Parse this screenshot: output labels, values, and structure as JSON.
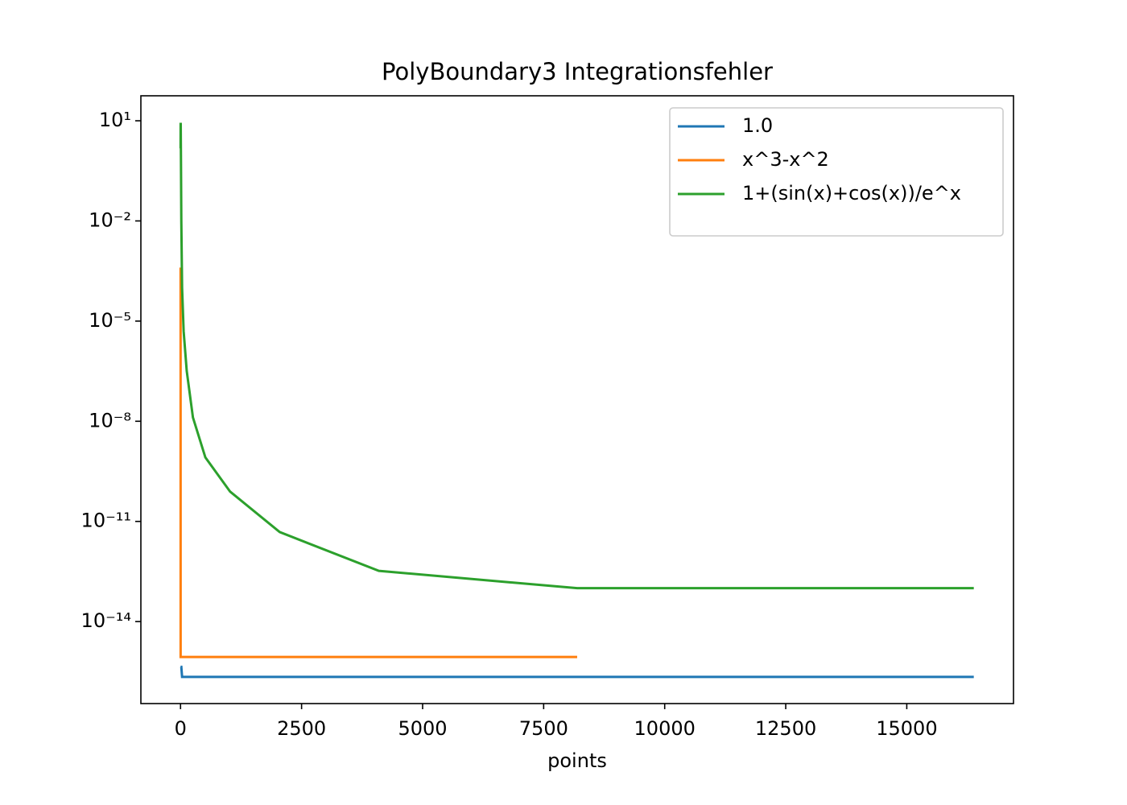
{
  "chart_data": {
    "type": "line",
    "title": "PolyBoundary3 Integrationsfehler",
    "xlabel": "points",
    "x": [
      1,
      2,
      4,
      8,
      16,
      32,
      64,
      128,
      256,
      512,
      1024,
      2048,
      4096,
      8192,
      16384
    ],
    "series": [
      {
        "name": "1.0",
        "color": "#1f77b4",
        "values": [
          4.4e-16,
          4.4e-16,
          4.4e-16,
          4.4e-16,
          4.4e-16,
          2.2e-16,
          2.2e-16,
          2.2e-16,
          2.2e-16,
          2.2e-16,
          2.2e-16,
          2.2e-16,
          2.2e-16,
          2.2e-16,
          2.2e-16
        ]
      },
      {
        "name": "x^3-x^2",
        "color": "#ff7f0e",
        "values": [
          0.0004,
          8.7e-16,
          8.7e-16,
          8.7e-16,
          8.7e-16,
          8.7e-16,
          8.7e-16,
          8.7e-16,
          8.7e-16,
          8.7e-16,
          8.7e-16,
          8.7e-16,
          8.7e-16,
          8.7e-16,
          null
        ]
      },
      {
        "name": "1+(sin(x)+cos(x))/e^x",
        "color": "#2ca02c",
        "values": [
          1.5,
          8,
          8,
          1,
          0.01,
          0.0001,
          5e-06,
          3.2e-07,
          1.3e-08,
          8.3e-10,
          7.8e-11,
          4.8e-12,
          3.3e-13,
          1e-13,
          1e-13
        ]
      }
    ],
    "xlim": [
      -819.15,
      17204.15
    ],
    "xticks": [
      0,
      2500,
      5000,
      7500,
      10000,
      12500,
      15000
    ],
    "ylim": [
      3.5e-17,
      56
    ],
    "log_y": true,
    "yticks": [
      {
        "value": 10,
        "label": "10¹"
      },
      {
        "value": 0.01,
        "label": "10⁻²"
      },
      {
        "value": 1e-05,
        "label": "10⁻⁵"
      },
      {
        "value": 1e-08,
        "label": "10⁻⁸"
      },
      {
        "value": 1e-11,
        "label": "10⁻¹¹"
      },
      {
        "value": 1e-14,
        "label": "10⁻¹⁴"
      }
    ],
    "grid": false,
    "legend": "upper right"
  }
}
